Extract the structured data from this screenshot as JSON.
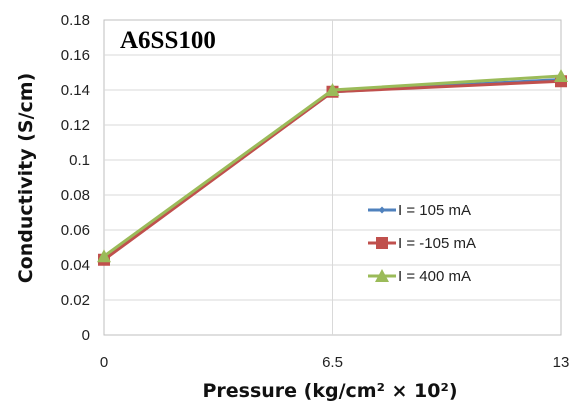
{
  "chart_data": {
    "type": "line",
    "annotation": "A6SS100",
    "xlabel": "Pressure (kg/cm² × 10²)",
    "ylabel": "Conductivity (S/cm)",
    "x": [
      0,
      6.5,
      13
    ],
    "x_ticks": [
      "0",
      "6.5",
      "13"
    ],
    "xlim": [
      0,
      13
    ],
    "ylim": [
      0,
      0.18
    ],
    "y_ticks": [
      "0",
      "0.02",
      "0.04",
      "0.06",
      "0.08",
      "0.1",
      "0.12",
      "0.14",
      "0.16",
      "0.18"
    ],
    "grid": true,
    "legend_position": "right",
    "series": [
      {
        "name": "I = 105 mA",
        "values": [
          0.044,
          0.139,
          0.146
        ],
        "color": "#4F81BD",
        "marker": "diamond"
      },
      {
        "name": "I = -105 mA",
        "values": [
          0.043,
          0.139,
          0.145
        ],
        "color": "#C0504D",
        "marker": "square"
      },
      {
        "name": "I = 400 mA",
        "values": [
          0.045,
          0.14,
          0.148
        ],
        "color": "#9BBB59",
        "marker": "triangle"
      }
    ]
  }
}
